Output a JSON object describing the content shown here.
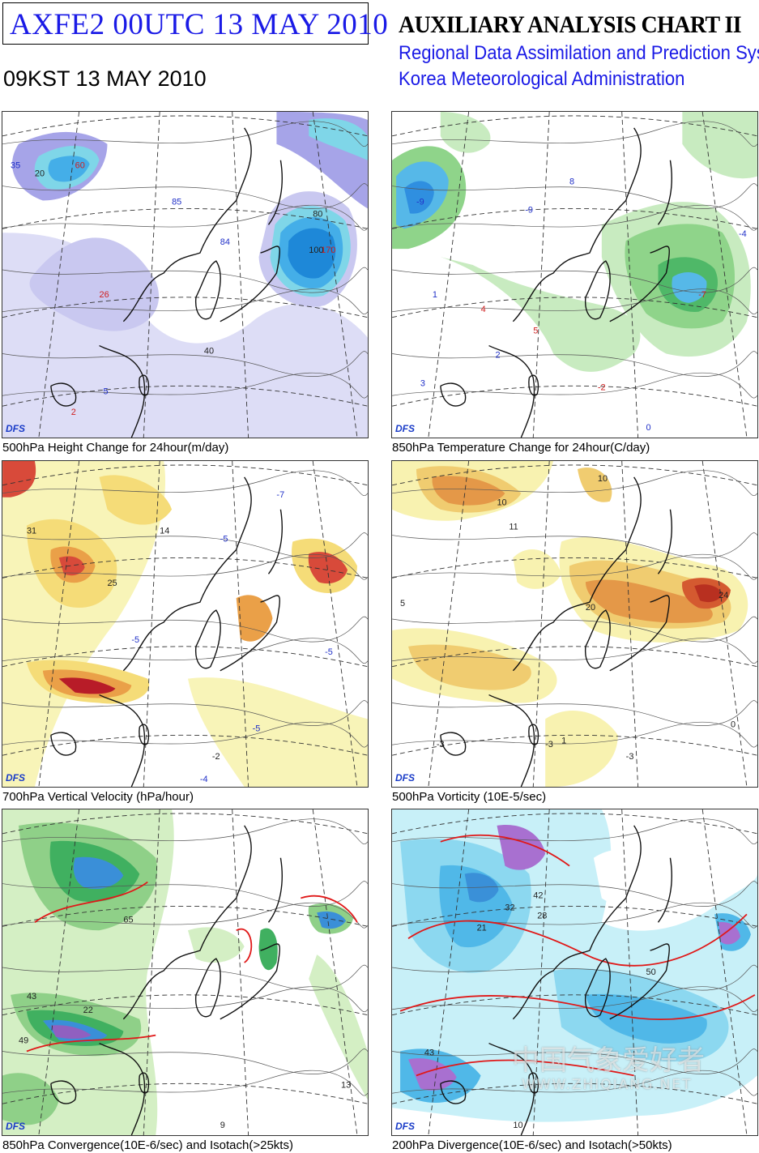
{
  "header": {
    "chart_id": "AXFE2  00UTC 13 MAY 2010",
    "local_time": "09KST 13 MAY 2010",
    "chart_title": "AUXILIARY ANALYSIS CHART II",
    "system_name": "Regional Data Assimilation and Prediction System",
    "agency": "Korea Meteorological Administration"
  },
  "colors": {
    "title_blue": "#1a1ae6",
    "coast": "#111111",
    "grid": "#333333"
  },
  "panels": [
    {
      "caption": "500hPa Height Change for 24hour(m/day)",
      "badge": "DFS",
      "fill_colors": [
        "#c9c8f0",
        "#a6a4e8",
        "#7fd6e8",
        "#44aee8",
        "#1e88d8"
      ],
      "labels": [
        "35",
        "60",
        "85",
        "84",
        "26",
        "170",
        "5",
        "2",
        "20",
        "40",
        "80",
        "100"
      ]
    },
    {
      "caption": "850hPa Temperature Change for 24hour(C/day)",
      "badge": "DFS",
      "fill_colors": [
        "#c8ebc0",
        "#8fd48a",
        "#4fb868",
        "#56b8e8",
        "#2f8fe0"
      ],
      "labels": [
        "-9",
        "8",
        "-9",
        "1",
        "4",
        "5",
        "-7",
        "2",
        "3",
        "-2",
        "0",
        "-4"
      ]
    },
    {
      "caption": "700hPa Vertical Velocity (hPa/hour)",
      "badge": "DFS",
      "fill_colors": [
        "#f8f4b8",
        "#f5dc78",
        "#eaa048",
        "#d84a3a",
        "#b81c28"
      ],
      "labels": [
        "-7",
        "-5",
        "-5",
        "-5",
        "-5",
        "-4",
        "-2",
        "25",
        "31",
        "14"
      ]
    },
    {
      "caption": "500hPa Vorticity (10E-5/sec)",
      "badge": "DFS",
      "fill_colors": [
        "#f8f2b0",
        "#f0cc70",
        "#e49848",
        "#d45a30",
        "#b83020"
      ],
      "labels": [
        "10",
        "10",
        "11",
        "20",
        "24",
        "-3",
        "-3",
        "-3",
        "0",
        "1",
        "5"
      ]
    },
    {
      "caption": "850hPa Convergence(10E-6/sec) and Isotach(>25kts)",
      "badge": "DFS",
      "fill_colors": [
        "#d4efc4",
        "#8fd088",
        "#40b060",
        "#3a8fd8",
        "#9060c0"
      ],
      "labels": [
        "65",
        "43",
        "49",
        "22",
        "9",
        "13"
      ]
    },
    {
      "caption": "200hPa Divergence(10E-6/sec) and Isotach(>50kts)",
      "badge": "DFS",
      "fill_colors": [
        "#c8f0f8",
        "#8cd8f0",
        "#50b8e8",
        "#3a90d8",
        "#a870d0"
      ],
      "labels": [
        "42",
        "32",
        "28",
        "21",
        "43",
        "10",
        "50"
      ]
    }
  ],
  "watermark": {
    "text": "中国气象爱好者",
    "url": "WWW.ZHIQIANG.NET"
  }
}
